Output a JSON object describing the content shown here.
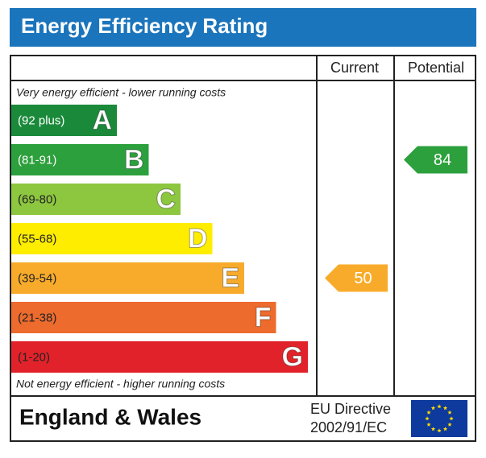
{
  "chart_data": {
    "type": "epc",
    "title": "Energy Efficiency Rating",
    "top_note": "Very energy efficient - lower running costs",
    "bottom_note": "Not energy efficient - higher running costs",
    "bands": [
      {
        "range": "(92 plus)",
        "letter": "A",
        "color": "#1a8a3a",
        "text_color": "#ffffff"
      },
      {
        "range": "(81-91)",
        "letter": "B",
        "color": "#2ca03c",
        "text_color": "#ffffff"
      },
      {
        "range": "(69-80)",
        "letter": "C",
        "color": "#8dc63f",
        "text_color": "#222222"
      },
      {
        "range": "(55-68)",
        "letter": "D",
        "color": "#ffed00",
        "text_color": "#222222"
      },
      {
        "range": "(39-54)",
        "letter": "E",
        "color": "#f8ab2a",
        "text_color": "#222222"
      },
      {
        "range": "(21-38)",
        "letter": "F",
        "color": "#ec6b2d",
        "text_color": "#222222"
      },
      {
        "range": "(1-20)",
        "letter": "G",
        "color": "#e2222a",
        "text_color": "#222222"
      }
    ],
    "series": [
      {
        "name": "Current",
        "values": [
          50
        ]
      },
      {
        "name": "Potential",
        "values": [
          84
        ]
      }
    ],
    "footer": {
      "region": "England & Wales",
      "directive_line1": "EU Directive",
      "directive_line2": "2002/91/EC"
    }
  }
}
